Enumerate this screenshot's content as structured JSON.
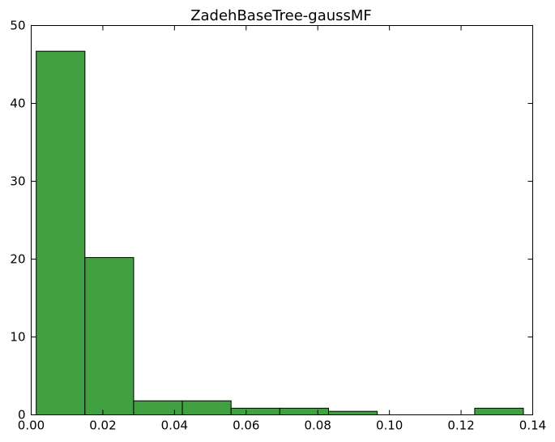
{
  "chart_data": {
    "type": "bar",
    "title": "ZadehBaseTree-gaussMF",
    "xlabel": "",
    "ylabel": "",
    "xlim": [
      0.0,
      0.14
    ],
    "ylim": [
      0,
      50
    ],
    "xticks": [
      "0.00",
      "0.02",
      "0.04",
      "0.06",
      "0.08",
      "0.10",
      "0.12",
      "0.14"
    ],
    "yticks": [
      "0",
      "10",
      "20",
      "30",
      "40",
      "50"
    ],
    "bin_edges": [
      0.0014,
      0.015,
      0.0286,
      0.0422,
      0.0558,
      0.0694,
      0.083,
      0.0966,
      0.1102,
      0.1238,
      0.1374
    ],
    "values": [
      46.7,
      20.2,
      1.8,
      1.8,
      0.85,
      0.85,
      0.45,
      0.0,
      0.0,
      0.85
    ],
    "bar_color": "#41a041",
    "grid": false
  }
}
